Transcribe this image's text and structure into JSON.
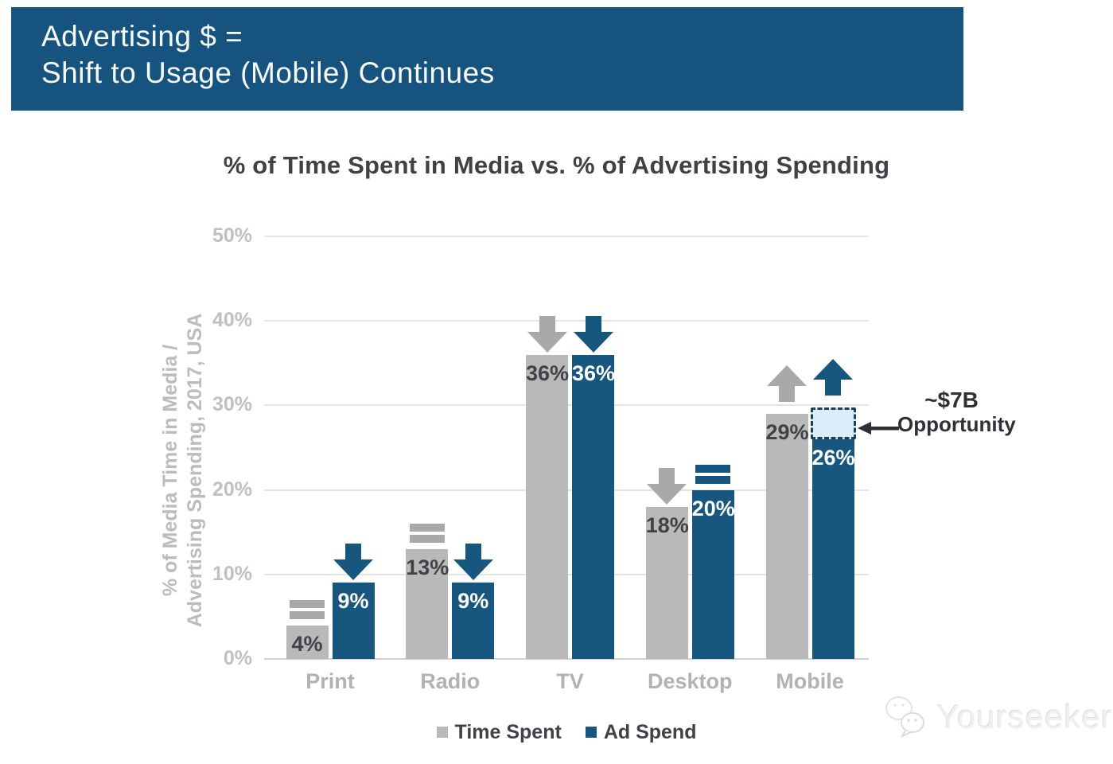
{
  "banner": {
    "line1": "Advertising $ =",
    "line2": "Shift to Usage (Mobile) Continues",
    "bg_color": "#16537e"
  },
  "chart_title": "% of Time Spent in Media vs. % of Advertising Spending",
  "chart_data": {
    "type": "bar",
    "title": "% of Time Spent in Media vs. % of Advertising Spending",
    "categories": [
      "Print",
      "Radio",
      "TV",
      "Desktop",
      "Mobile"
    ],
    "series": [
      {
        "name": "Time Spent",
        "color": "#b9b9b9",
        "symbol_color": "#a9a9a9",
        "label_color": "#3f4347",
        "values": [
          4,
          13,
          36,
          18,
          29
        ],
        "value_labels": [
          "4%",
          "13%",
          "36%",
          "18%",
          "29%"
        ],
        "trends": [
          "equal",
          "equal",
          "down",
          "down",
          "up"
        ]
      },
      {
        "name": "Ad Spend",
        "color": "#16567f",
        "symbol_color": "#16567f",
        "label_color": "#ffffff",
        "values": [
          9,
          9,
          36,
          20,
          26
        ],
        "value_labels": [
          "9%",
          "9%",
          "36%",
          "20%",
          "26%"
        ],
        "trends": [
          "down",
          "down",
          "down",
          "equal",
          "up"
        ]
      }
    ],
    "ylabel_line1": "% of Media Time in Media /",
    "ylabel_line2": "Advertising Spending, 2017, USA",
    "ylim": [
      0,
      50
    ],
    "yticks": [
      "0%",
      "10%",
      "20%",
      "30%",
      "40%",
      "50%"
    ],
    "grid": true,
    "legend_position": "bottom",
    "annotation": {
      "line1": "~$7B",
      "line2": "Opportunity",
      "target_category": "Mobile",
      "target_series": "Ad Spend",
      "box_top_value": 29.8,
      "box_bottom_value": 26,
      "box_fill": "#d9ecf8",
      "box_border": "#1f3e5c"
    }
  },
  "watermark": {
    "text": "Yourseeker"
  }
}
